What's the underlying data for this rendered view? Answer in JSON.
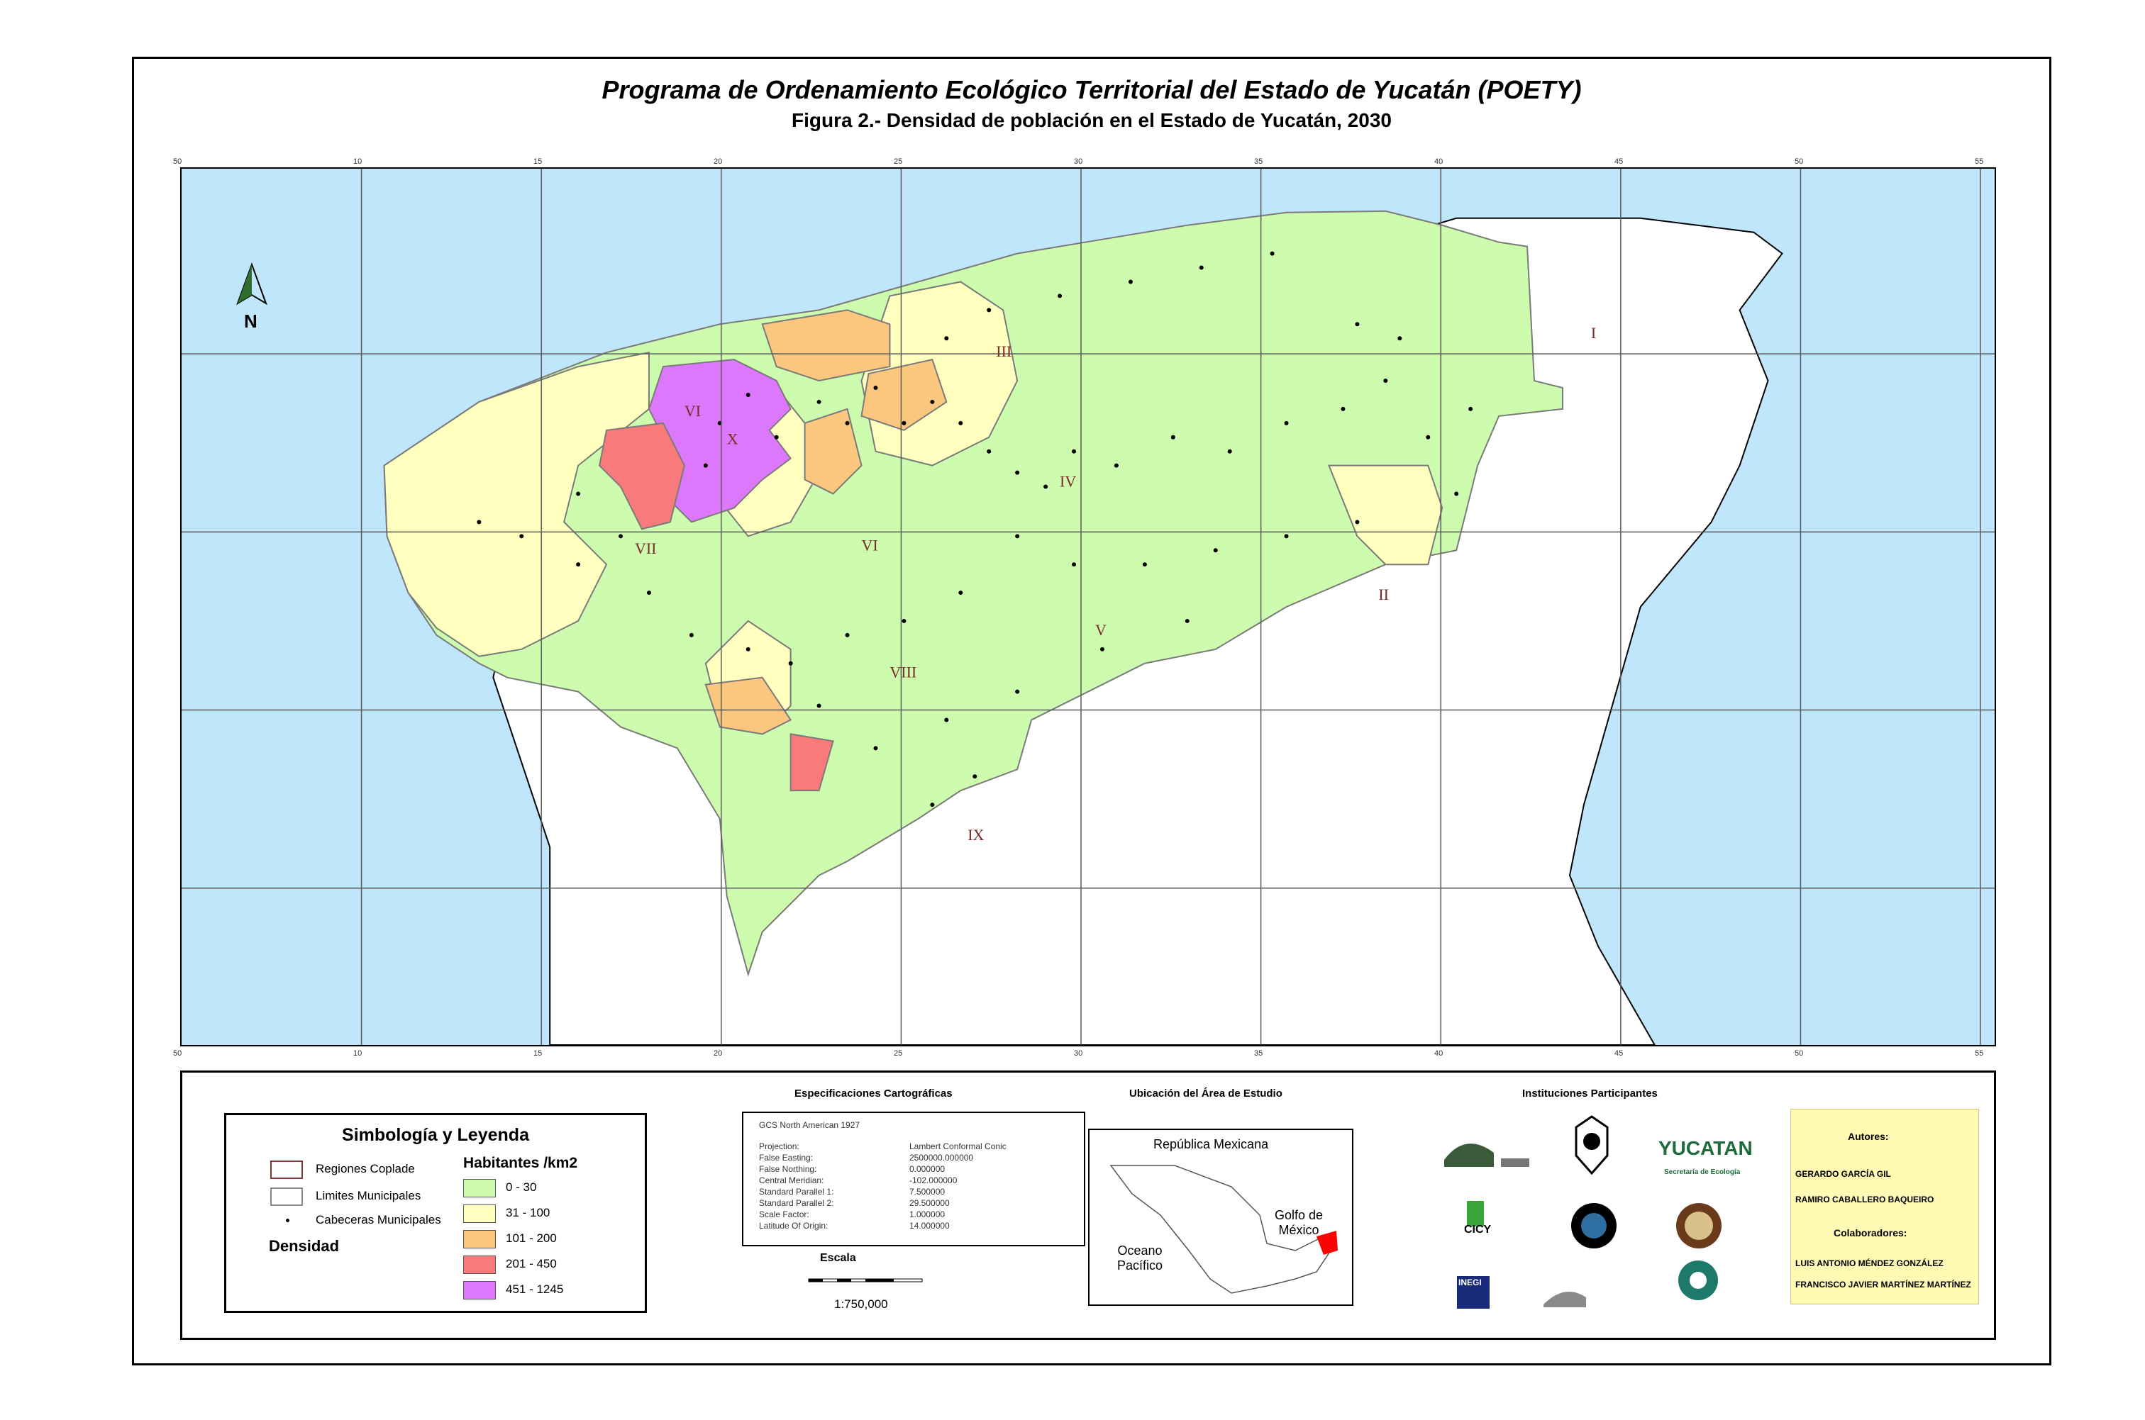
{
  "header": {
    "title": "Programa de Ordenamiento Ecológico Territorial  del Estado de Yucatán (POETY)",
    "subtitle": "Figura   2.- Densidad de población en el Estado de Yucatán, 2030"
  },
  "map": {
    "north_label": "N",
    "regions": [
      "I",
      "II",
      "III",
      "IV",
      "V",
      "VI",
      "VI",
      "VII",
      "VIII",
      "IX",
      "X"
    ],
    "top_ticks": [
      "50",
      "10",
      "15",
      "20",
      "25",
      "30",
      "35",
      "40",
      "45",
      "50",
      "55"
    ],
    "colors": {
      "sea": "#bfe6fb",
      "land": "#ffffff",
      "d0_30": "#cdfcaf",
      "d31_100": "#ffffbf",
      "d101_200": "#fbc77f",
      "d201_450": "#f87a7a",
      "d451_1245": "#dd77fb"
    }
  },
  "legend": {
    "title": "Simbología y Leyenda",
    "regiones": "Regiones Coplade",
    "limites": "Limites Municipales",
    "cabeceras": "Cabeceras Municipales",
    "densidad": "Densidad",
    "habitantes": "Habitantes /km2",
    "classes": [
      {
        "label": "0 - 30",
        "color": "#cdfcaf"
      },
      {
        "label": "31 - 100",
        "color": "#ffffbf"
      },
      {
        "label": "101 - 200",
        "color": "#fbc77f"
      },
      {
        "label": "201 - 450",
        "color": "#f87a7a"
      },
      {
        "label": "451 - 1245",
        "color": "#dd77fb"
      }
    ]
  },
  "specs": {
    "title": "Especificaciones Cartográficas",
    "gcs": "GCS North American 1927",
    "rows": [
      {
        "k": "Projection:",
        "v": "Lambert Conformal Conic"
      },
      {
        "k": "False Easting:",
        "v": "2500000.000000"
      },
      {
        "k": "False Northing:",
        "v": "0.000000"
      },
      {
        "k": "Central Meridian:",
        "v": "-102.000000"
      },
      {
        "k": "Standard Parallel 1:",
        "v": "7.500000"
      },
      {
        "k": "Standard Parallel 2:",
        "v": "29.500000"
      },
      {
        "k": "Scale Factor:",
        "v": "1.000000"
      },
      {
        "k": "Latitude Of Origin:",
        "v": "14.000000"
      }
    ],
    "scale_title": "Escala",
    "scale_value": "1:750,000"
  },
  "location": {
    "title": "Ubicación del Área de Estudio",
    "republica": "República Mexicana",
    "golfo": "Golfo de México",
    "oceano": "Oceano Pacífico"
  },
  "institutions": {
    "title": "Instituciones Participantes",
    "yucatan": "YUCATAN",
    "secretaria": "Secretaría de Ecología",
    "cicy": "CICY",
    "inegi": "INEGI"
  },
  "authors": {
    "autores_label": "Autores:",
    "autor1": "GERARDO GARCÍA GIL",
    "autor2": "RAMIRO CABALLERO BAQUEIRO",
    "colab_label": "Colaboradores:",
    "colab1": "LUIS ANTONIO MÉNDEZ GONZÁLEZ",
    "colab2": "FRANCISCO JAVIER MARTÍNEZ MARTÍNEZ"
  }
}
